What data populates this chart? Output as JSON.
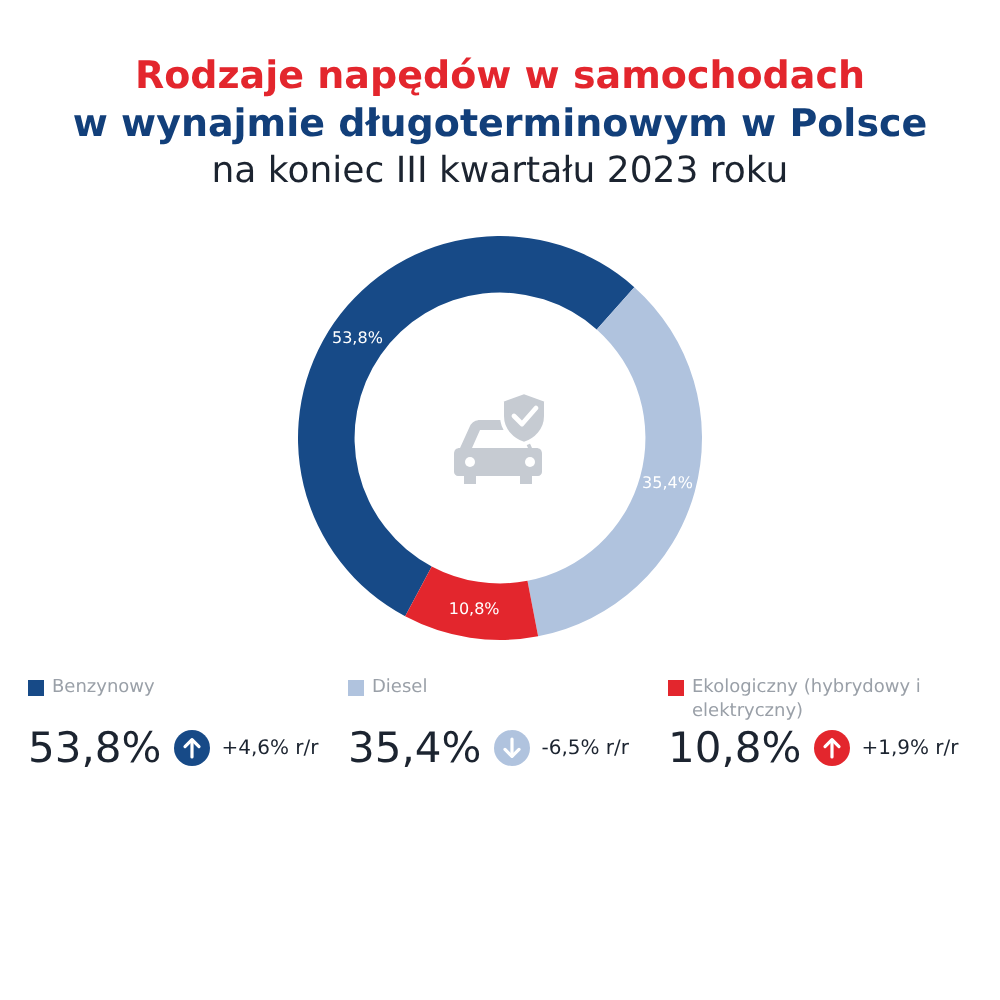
{
  "chart_data": {
    "type": "donut",
    "title": "Rodzaje napędów w samochodach\nw wynajmie długoterminowym w Polsce",
    "subtitle": "na koniec III kwartału 2023 roku",
    "categories": [
      "Benzynowy",
      "Diesel",
      "Ekologiczny (hybrydowy i elektryczny)"
    ],
    "values": [
      53.8,
      35.4,
      10.8
    ],
    "colors": [
      "#174a87",
      "#b0c3de",
      "#e3262d"
    ],
    "value_labels": [
      "53,8%",
      "35,4%",
      "10,8%"
    ],
    "annotations": [
      "+4,6% r/r",
      "-6,5% r/r",
      "+1,9% r/r"
    ],
    "legend": "bottom"
  }
}
